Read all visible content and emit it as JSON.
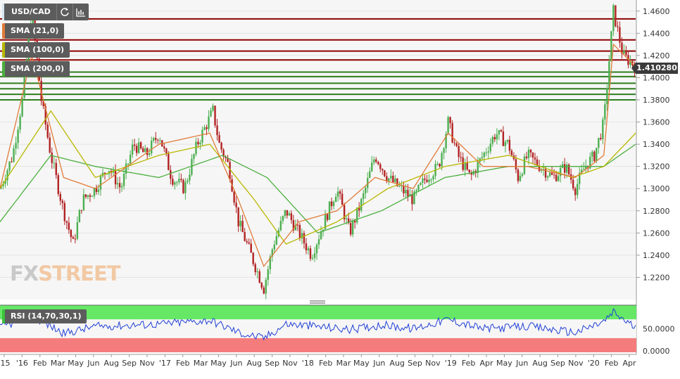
{
  "toolbar": {
    "symbol": "USD/CAD",
    "refresh_icon": "refresh-icon",
    "indicators_icon": "indicators-icon"
  },
  "legends": [
    {
      "label": "SMA (21,0)",
      "color": "#e07b39"
    },
    {
      "label": "SMA (100,0)",
      "color": "#b8b800"
    },
    {
      "label": "SMA (200,0)",
      "color": "#4caf3f"
    }
  ],
  "rsi": {
    "label": "RSI (14,70,30,1)"
  },
  "last_price": "1.410280",
  "watermark": {
    "fx": "FX",
    "street": "STREET"
  },
  "colors": {
    "up": "#4caf50",
    "down": "#b22222",
    "resistance": "#8b0000",
    "support": "#2e7d1e",
    "rsi_line": "#1f3fd6",
    "rsi_overbought": "#66e866",
    "rsi_oversold": "#f47c7c"
  },
  "chart_data": {
    "type": "candlestick",
    "ylim": [
      1.2,
      1.47
    ],
    "yticks": [
      "1.4600",
      "1.4400",
      "1.4200",
      "1.4000",
      "1.3800",
      "1.3600",
      "1.3400",
      "1.3200",
      "1.3000",
      "1.2800",
      "1.2600",
      "1.2400",
      "1.2200"
    ],
    "xticks": [
      "'15",
      "'16",
      "Feb",
      "Mar",
      "May",
      "Jun",
      "Aug",
      "Sep",
      "Nov",
      "'17",
      "Feb",
      "Mar",
      "May",
      "Jun",
      "Aug",
      "Sep",
      "Nov",
      "'18",
      "Feb",
      "Mar",
      "May",
      "Jun",
      "Aug",
      "Sep",
      "Nov",
      "'19",
      "Feb",
      "Apr",
      "May",
      "Jun",
      "Aug",
      "Sep",
      "Nov",
      "'20",
      "Feb",
      "Apr"
    ],
    "price_path": [
      [
        0,
        1.3
      ],
      [
        0.02,
        1.33
      ],
      [
        0.035,
        1.38
      ],
      [
        0.05,
        1.46
      ],
      [
        0.065,
        1.38
      ],
      [
        0.08,
        1.33
      ],
      [
        0.1,
        1.28
      ],
      [
        0.115,
        1.25
      ],
      [
        0.13,
        1.29
      ],
      [
        0.15,
        1.3
      ],
      [
        0.17,
        1.32
      ],
      [
        0.19,
        1.3
      ],
      [
        0.21,
        1.34
      ],
      [
        0.23,
        1.33
      ],
      [
        0.25,
        1.35
      ],
      [
        0.27,
        1.31
      ],
      [
        0.29,
        1.3
      ],
      [
        0.31,
        1.34
      ],
      [
        0.335,
        1.37
      ],
      [
        0.345,
        1.34
      ],
      [
        0.36,
        1.32
      ],
      [
        0.375,
        1.27
      ],
      [
        0.395,
        1.24
      ],
      [
        0.415,
        1.21
      ],
      [
        0.43,
        1.25
      ],
      [
        0.45,
        1.28
      ],
      [
        0.47,
        1.26
      ],
      [
        0.49,
        1.24
      ],
      [
        0.51,
        1.27
      ],
      [
        0.53,
        1.3
      ],
      [
        0.55,
        1.26
      ],
      [
        0.57,
        1.29
      ],
      [
        0.59,
        1.33
      ],
      [
        0.61,
        1.31
      ],
      [
        0.63,
        1.3
      ],
      [
        0.65,
        1.29
      ],
      [
        0.67,
        1.31
      ],
      [
        0.69,
        1.32
      ],
      [
        0.705,
        1.36
      ],
      [
        0.72,
        1.33
      ],
      [
        0.74,
        1.31
      ],
      [
        0.76,
        1.33
      ],
      [
        0.78,
        1.35
      ],
      [
        0.8,
        1.34
      ],
      [
        0.815,
        1.31
      ],
      [
        0.83,
        1.33
      ],
      [
        0.85,
        1.32
      ],
      [
        0.87,
        1.31
      ],
      [
        0.89,
        1.32
      ],
      [
        0.905,
        1.3
      ],
      [
        0.92,
        1.32
      ],
      [
        0.935,
        1.33
      ],
      [
        0.95,
        1.36
      ],
      [
        0.965,
        1.46
      ],
      [
        0.98,
        1.42
      ],
      [
        1.0,
        1.41
      ]
    ],
    "sma21_path": [
      [
        0,
        1.3
      ],
      [
        0.05,
        1.42
      ],
      [
        0.1,
        1.31
      ],
      [
        0.15,
        1.3
      ],
      [
        0.25,
        1.34
      ],
      [
        0.33,
        1.35
      ],
      [
        0.375,
        1.29
      ],
      [
        0.415,
        1.23
      ],
      [
        0.47,
        1.27
      ],
      [
        0.53,
        1.28
      ],
      [
        0.59,
        1.31
      ],
      [
        0.65,
        1.3
      ],
      [
        0.705,
        1.35
      ],
      [
        0.76,
        1.32
      ],
      [
        0.83,
        1.32
      ],
      [
        0.905,
        1.31
      ],
      [
        0.95,
        1.33
      ],
      [
        0.965,
        1.43
      ],
      [
        1.0,
        1.41
      ]
    ],
    "sma100_path": [
      [
        0,
        1.3
      ],
      [
        0.08,
        1.37
      ],
      [
        0.15,
        1.31
      ],
      [
        0.25,
        1.33
      ],
      [
        0.33,
        1.34
      ],
      [
        0.4,
        1.29
      ],
      [
        0.45,
        1.25
      ],
      [
        0.53,
        1.27
      ],
      [
        0.61,
        1.3
      ],
      [
        0.7,
        1.32
      ],
      [
        0.8,
        1.33
      ],
      [
        0.9,
        1.31
      ],
      [
        0.95,
        1.32
      ],
      [
        1.0,
        1.35
      ]
    ],
    "sma200_path": [
      [
        0,
        1.27
      ],
      [
        0.08,
        1.33
      ],
      [
        0.15,
        1.32
      ],
      [
        0.25,
        1.31
      ],
      [
        0.35,
        1.33
      ],
      [
        0.42,
        1.31
      ],
      [
        0.5,
        1.26
      ],
      [
        0.6,
        1.28
      ],
      [
        0.7,
        1.31
      ],
      [
        0.8,
        1.32
      ],
      [
        0.9,
        1.32
      ],
      [
        0.95,
        1.32
      ],
      [
        1.0,
        1.34
      ]
    ],
    "resistance_levels": [
      1.453,
      1.434,
      1.424,
      1.416
    ],
    "support_levels": [
      1.405,
      1.401,
      1.395,
      1.39,
      1.385,
      1.38
    ],
    "rsi_ticks": [
      "50.0000",
      "0.0000"
    ],
    "rsi_path": [
      [
        0,
        52
      ],
      [
        0.05,
        78
      ],
      [
        0.1,
        40
      ],
      [
        0.15,
        55
      ],
      [
        0.25,
        60
      ],
      [
        0.33,
        68
      ],
      [
        0.38,
        40
      ],
      [
        0.415,
        30
      ],
      [
        0.45,
        60
      ],
      [
        0.5,
        55
      ],
      [
        0.55,
        48
      ],
      [
        0.6,
        58
      ],
      [
        0.65,
        50
      ],
      [
        0.705,
        70
      ],
      [
        0.76,
        50
      ],
      [
        0.83,
        55
      ],
      [
        0.905,
        42
      ],
      [
        0.95,
        65
      ],
      [
        0.965,
        85
      ],
      [
        1.0,
        52
      ]
    ]
  }
}
